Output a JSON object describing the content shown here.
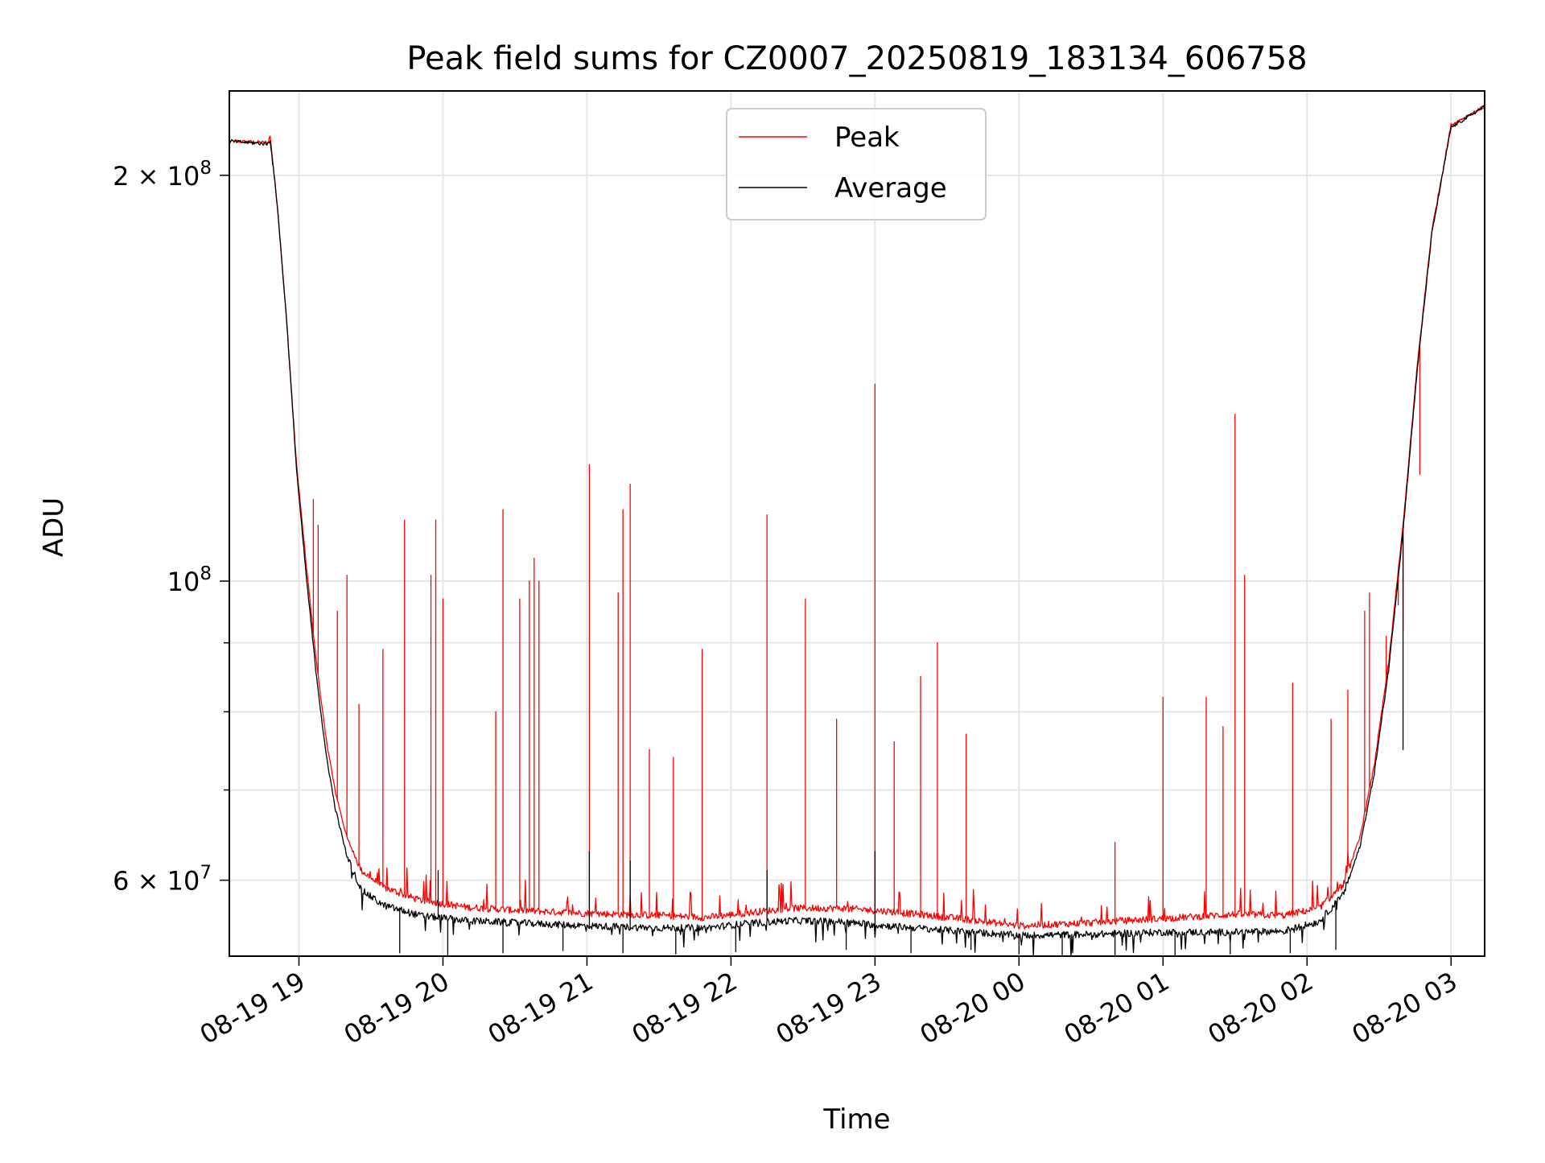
{
  "chart_data": {
    "type": "line",
    "title": "Peak field sums for CZ0007_20250819_183134_606758",
    "xlabel": "Time",
    "ylabel": "ADU",
    "y_scale": "log",
    "grid": true,
    "legend_position": "top-center",
    "xlim": [
      "2025-08-19 18:31",
      "2025-08-20 03:14"
    ],
    "ylim": [
      52700000,
      231000000
    ],
    "x_ticks": [
      {
        "value": "2025-08-19 19:00",
        "label": "08-19 19"
      },
      {
        "value": "2025-08-19 20:00",
        "label": "08-19 20"
      },
      {
        "value": "2025-08-19 21:00",
        "label": "08-19 21"
      },
      {
        "value": "2025-08-19 22:00",
        "label": "08-19 22"
      },
      {
        "value": "2025-08-19 23:00",
        "label": "08-19 23"
      },
      {
        "value": "2025-08-20 00:00",
        "label": "08-20 00"
      },
      {
        "value": "2025-08-20 01:00",
        "label": "08-20 01"
      },
      {
        "value": "2025-08-20 02:00",
        "label": "08-20 02"
      },
      {
        "value": "2025-08-20 03:00",
        "label": "08-20 03"
      }
    ],
    "y_ticks": [
      {
        "value": 60000000,
        "base": "6 × 10",
        "exp": "7"
      },
      {
        "value": 100000000,
        "base": "10",
        "exp": "8"
      },
      {
        "value": 200000000,
        "base": "2 × 10",
        "exp": "8"
      }
    ],
    "y_minor_ticks": [
      70000000,
      80000000,
      90000000,
      300000000,
      400000000,
      500000000
    ],
    "series": [
      {
        "name": "Peak",
        "color": "#ff0000",
        "points": [
          [
            "2025-08-19 18:31",
            212000000
          ],
          [
            "2025-08-19 18:47",
            211500000
          ],
          [
            "2025-08-19 18:48",
            214000000
          ],
          [
            "2025-08-19 18:51",
            190000000
          ],
          [
            "2025-08-19 18:55",
            155000000
          ],
          [
            "2025-08-19 18:59",
            122000000
          ],
          [
            "2025-08-19 19:03",
            103000000
          ],
          [
            "2025-08-19 19:07",
            88000000
          ],
          [
            "2025-08-19 19:11",
            77000000
          ],
          [
            "2025-08-19 19:15",
            70000000
          ],
          [
            "2025-08-19 19:20",
            64500000
          ],
          [
            "2025-08-19 19:26",
            61000000
          ],
          [
            "2025-08-19 19:35",
            59300000
          ],
          [
            "2025-08-19 19:50",
            58000000
          ],
          [
            "2025-08-19 20:10",
            57300000
          ],
          [
            "2025-08-19 20:30",
            57000000
          ],
          [
            "2025-08-19 21:00",
            56700000
          ],
          [
            "2025-08-19 21:30",
            56500000
          ],
          [
            "2025-08-19 21:50",
            56300000
          ],
          [
            "2025-08-19 22:05",
            56700000
          ],
          [
            "2025-08-19 22:25",
            57200000
          ],
          [
            "2025-08-19 22:45",
            57200000
          ],
          [
            "2025-08-19 23:05",
            56900000
          ],
          [
            "2025-08-19 23:35",
            56200000
          ],
          [
            "2025-08-20 00:00",
            55500000
          ],
          [
            "2025-08-20 00:30",
            55800000
          ],
          [
            "2025-08-20 01:00",
            56200000
          ],
          [
            "2025-08-20 01:30",
            56600000
          ],
          [
            "2025-08-20 01:50",
            56500000
          ],
          [
            "2025-08-20 02:05",
            57200000
          ],
          [
            "2025-08-20 02:15",
            59500000
          ],
          [
            "2025-08-20 02:22",
            64500000
          ],
          [
            "2025-08-20 02:28",
            73000000
          ],
          [
            "2025-08-20 02:34",
            87000000
          ],
          [
            "2025-08-20 02:40",
            110000000
          ],
          [
            "2025-08-20 02:46",
            145000000
          ],
          [
            "2025-08-20 02:52",
            182000000
          ],
          [
            "2025-08-20 03:00",
            218000000
          ],
          [
            "2025-08-20 03:14",
            225000000
          ]
        ],
        "spikes": [
          [
            "2025-08-19 19:06",
            115000000
          ],
          [
            "2025-08-19 19:08",
            110000000
          ],
          [
            "2025-08-19 19:16",
            95000000
          ],
          [
            "2025-08-19 19:20",
            101000000
          ],
          [
            "2025-08-19 19:25",
            81000000
          ],
          [
            "2025-08-19 19:35",
            89000000
          ],
          [
            "2025-08-19 19:44",
            111000000
          ],
          [
            "2025-08-19 19:55",
            101000000
          ],
          [
            "2025-08-19 19:57",
            111000000
          ],
          [
            "2025-08-19 20:00",
            97000000
          ],
          [
            "2025-08-19 20:22",
            80000000
          ],
          [
            "2025-08-19 20:25",
            113000000
          ],
          [
            "2025-08-19 20:32",
            97000000
          ],
          [
            "2025-08-19 20:36",
            100000000
          ],
          [
            "2025-08-19 20:38",
            104000000
          ],
          [
            "2025-08-19 20:40",
            100000000
          ],
          [
            "2025-08-19 21:01",
            122000000
          ],
          [
            "2025-08-19 21:13",
            98000000
          ],
          [
            "2025-08-19 21:15",
            113000000
          ],
          [
            "2025-08-19 21:18",
            118000000
          ],
          [
            "2025-08-19 21:26",
            75000000
          ],
          [
            "2025-08-19 21:36",
            74000000
          ],
          [
            "2025-08-19 21:48",
            89000000
          ],
          [
            "2025-08-19 22:15",
            112000000
          ],
          [
            "2025-08-19 22:31",
            97000000
          ],
          [
            "2025-08-19 22:44",
            79000000
          ],
          [
            "2025-08-19 23:00",
            140000000
          ],
          [
            "2025-08-19 23:08",
            76000000
          ],
          [
            "2025-08-19 23:19",
            85000000
          ],
          [
            "2025-08-19 23:26",
            90000000
          ],
          [
            "2025-08-19 23:38",
            77000000
          ],
          [
            "2025-08-20 00:40",
            64000000
          ],
          [
            "2025-08-20 01:00",
            82000000
          ],
          [
            "2025-08-20 01:18",
            82000000
          ],
          [
            "2025-08-20 01:25",
            78000000
          ],
          [
            "2025-08-20 01:30",
            133000000
          ],
          [
            "2025-08-20 01:34",
            101000000
          ],
          [
            "2025-08-20 01:54",
            84000000
          ],
          [
            "2025-08-20 02:10",
            79000000
          ],
          [
            "2025-08-20 02:17",
            83000000
          ],
          [
            "2025-08-20 02:24",
            95000000
          ],
          [
            "2025-08-20 02:26",
            98000000
          ],
          [
            "2025-08-20 02:33",
            91000000
          ],
          [
            "2025-08-20 02:38",
            96000000
          ],
          [
            "2025-08-20 02:40",
            92000000
          ],
          [
            "2025-08-20 02:47",
            120000000
          ]
        ]
      },
      {
        "name": "Average",
        "color": "#000000",
        "points": [
          [
            "2025-08-19 18:31",
            212000000
          ],
          [
            "2025-08-19 18:47",
            211000000
          ],
          [
            "2025-08-19 18:48",
            212500000
          ],
          [
            "2025-08-19 18:51",
            190000000
          ],
          [
            "2025-08-19 18:55",
            155000000
          ],
          [
            "2025-08-19 18:59",
            121000000
          ],
          [
            "2025-08-19 19:03",
            101000000
          ],
          [
            "2025-08-19 19:07",
            86000000
          ],
          [
            "2025-08-19 19:11",
            75000000
          ],
          [
            "2025-08-19 19:15",
            68000000
          ],
          [
            "2025-08-19 19:20",
            62500000
          ],
          [
            "2025-08-19 19:26",
            59000000
          ],
          [
            "2025-08-19 19:35",
            57500000
          ],
          [
            "2025-08-19 19:50",
            56500000
          ],
          [
            "2025-08-19 20:10",
            56000000
          ],
          [
            "2025-08-19 20:30",
            55800000
          ],
          [
            "2025-08-19 21:00",
            55500000
          ],
          [
            "2025-08-19 21:30",
            55300000
          ],
          [
            "2025-08-19 21:50",
            55300000
          ],
          [
            "2025-08-19 22:05",
            55700000
          ],
          [
            "2025-08-19 22:25",
            56000000
          ],
          [
            "2025-08-19 22:45",
            55900000
          ],
          [
            "2025-08-19 23:05",
            55500000
          ],
          [
            "2025-08-19 23:35",
            55000000
          ],
          [
            "2025-08-20 00:00",
            54600000
          ],
          [
            "2025-08-20 00:30",
            54700000
          ],
          [
            "2025-08-20 01:00",
            54900000
          ],
          [
            "2025-08-20 01:30",
            54900000
          ],
          [
            "2025-08-20 01:50",
            55000000
          ],
          [
            "2025-08-20 02:05",
            55900000
          ],
          [
            "2025-08-20 02:15",
            58500000
          ],
          [
            "2025-08-20 02:22",
            63500000
          ],
          [
            "2025-08-20 02:28",
            72000000
          ],
          [
            "2025-08-20 02:34",
            86000000
          ],
          [
            "2025-08-20 02:40",
            109000000
          ],
          [
            "2025-08-20 02:46",
            144000000
          ],
          [
            "2025-08-20 02:52",
            181000000
          ],
          [
            "2025-08-20 03:00",
            217000000
          ],
          [
            "2025-08-20 03:14",
            225000000
          ]
        ],
        "dips": [
          [
            "2025-08-19 19:42",
            53000000
          ],
          [
            "2025-08-19 20:02",
            52500000
          ],
          [
            "2025-08-19 20:25",
            53000000
          ],
          [
            "2025-08-19 20:50",
            53200000
          ],
          [
            "2025-08-19 21:15",
            53000000
          ],
          [
            "2025-08-19 21:37",
            52900000
          ],
          [
            "2025-08-19 22:02",
            53100000
          ],
          [
            "2025-08-19 22:48",
            53300000
          ],
          [
            "2025-08-19 23:15",
            53000000
          ],
          [
            "2025-08-19 23:40",
            53300000
          ],
          [
            "2025-08-20 00:00",
            52900000
          ],
          [
            "2025-08-20 00:18",
            52800000
          ],
          [
            "2025-08-20 00:40",
            52700000
          ],
          [
            "2025-08-20 01:05",
            52800000
          ],
          [
            "2025-08-20 01:28",
            52900000
          ],
          [
            "2025-08-20 01:53",
            53000000
          ],
          [
            "2025-08-20 02:12",
            53300000
          ]
        ],
        "bumps": [
          [
            "2025-08-19 19:58",
            61000000
          ],
          [
            "2025-08-19 21:01",
            63000000
          ],
          [
            "2025-08-19 21:18",
            62000000
          ],
          [
            "2025-08-19 22:15",
            61000000
          ],
          [
            "2025-08-19 23:00",
            63000000
          ],
          [
            "2025-08-20 02:40",
            75000000
          ]
        ]
      }
    ]
  }
}
